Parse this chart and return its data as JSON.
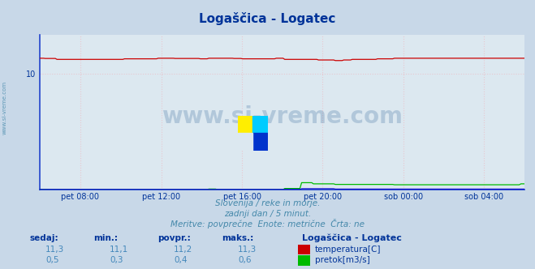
{
  "title": "Logaščica - Logatec",
  "bg_color": "#c8d8e8",
  "plot_bg_color": "#dce8f0",
  "title_color": "#003399",
  "axis_color": "#003399",
  "text_color": "#4488aa",
  "grid_color_h": "#e8c8d0",
  "grid_color_v": "#e8c8d0",
  "spine_color": "#2244cc",
  "watermark_text": "www.si-vreme.com",
  "watermark_color": "#336699",
  "subtitle1": "Slovenija / reke in morje.",
  "subtitle2": "zadnji dan / 5 minut.",
  "subtitle3": "Meritve: povprečne  Enote: metrične  Črta: ne",
  "x_tick_labels": [
    "pet 08:00",
    "pet 12:00",
    "pet 16:00",
    "pet 20:00",
    "sob 00:00",
    "sob 04:00"
  ],
  "x_tick_fracs": [
    0.083,
    0.25,
    0.417,
    0.583,
    0.75,
    0.917
  ],
  "ylim_min": 0.0,
  "ylim_max": 13.3,
  "y_tick_val": 10,
  "n_points": 288,
  "red_line_color": "#cc0000",
  "green_line_color": "#00bb00",
  "blue_line_color": "#0000cc",
  "station_label": "Logaščica - Logatec",
  "legend_temp": "temperatura[C]",
  "legend_flow": "pretok[m3/s]",
  "label_sedaj": "sedaj:",
  "label_min": "min.:",
  "label_povpr": "povpr.:",
  "label_maks": "maks.:",
  "vals_temp": [
    "11,3",
    "11,1",
    "11,2",
    "11,3"
  ],
  "vals_flow": [
    "0,5",
    "0,3",
    "0,4",
    "0,6"
  ],
  "left_watermark": "www.si-vreme.com",
  "label_color": "#003399",
  "val_color": "#4488bb"
}
